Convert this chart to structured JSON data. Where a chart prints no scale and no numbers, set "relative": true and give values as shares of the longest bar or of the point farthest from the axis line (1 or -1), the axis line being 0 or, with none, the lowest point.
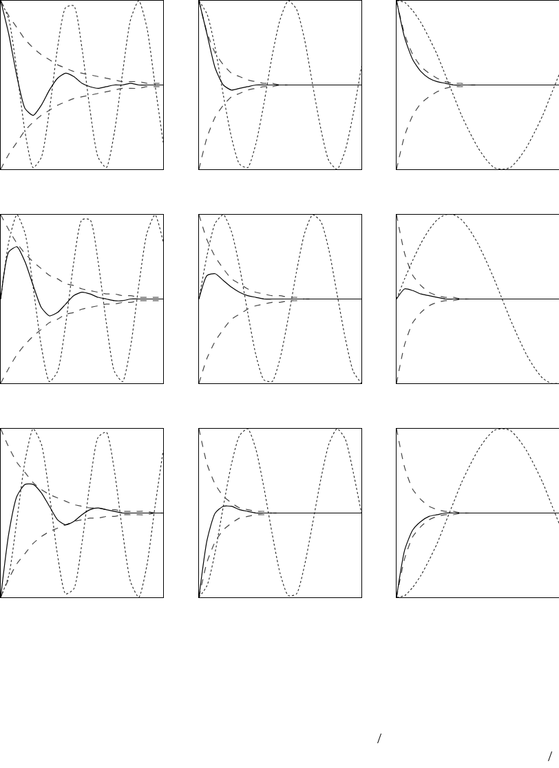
{
  "chart_data": [
    {
      "type": "line",
      "relative": true,
      "categories": [
        null,
        null,
        null,
        null,
        null,
        null,
        null,
        null,
        null,
        null,
        null,
        null,
        null,
        null,
        null,
        null,
        null,
        null,
        null,
        null,
        null
      ],
      "series": [
        {
          "color": "#333333",
          "line_style": "dotted",
          "values": [
            1.0,
            0.89,
            0.58,
            0.22,
            0.01,
            0.07,
            0.35,
            0.72,
            0.96,
            0.97,
            0.72,
            0.35,
            0.07,
            0.01,
            0.22,
            0.57,
            0.89,
            1.0,
            0.84,
            0.5,
            0.16
          ]
        },
        {
          "color": "#444444",
          "line_style": "dashed",
          "values": [
            1.0,
            0.91,
            0.84,
            0.77,
            0.72,
            0.68,
            0.65,
            0.62,
            0.6,
            0.58,
            0.57,
            0.56,
            0.55,
            0.54,
            0.53,
            0.52,
            0.52,
            0.52,
            0.51,
            0.51,
            0.51
          ]
        },
        {
          "color": "#444444",
          "line_style": "dashed",
          "values": [
            0.0,
            0.09,
            0.16,
            0.23,
            0.28,
            0.32,
            0.35,
            0.38,
            0.4,
            0.42,
            0.43,
            0.44,
            0.45,
            0.46,
            0.47,
            0.48,
            0.48,
            0.48,
            0.49,
            0.49,
            0.49
          ]
        },
        {
          "color": "#000000",
          "line_style": "solid",
          "values": [
            1.0,
            0.8,
            0.55,
            0.36,
            0.32,
            0.38,
            0.47,
            0.54,
            0.57,
            0.55,
            0.51,
            0.49,
            0.48,
            0.49,
            0.5,
            0.5,
            0.51,
            0.5,
            0.5,
            0.5,
            0.5
          ]
        }
      ]
    },
    {
      "type": "line",
      "relative": true,
      "categories": [
        null,
        null,
        null,
        null,
        null,
        null,
        null,
        null,
        null,
        null,
        null,
        null,
        null,
        null,
        null,
        null,
        null,
        null,
        null,
        null,
        null
      ],
      "series": [
        {
          "color": "#333333",
          "line_style": "dotted",
          "values": [
            1.0,
            0.92,
            0.72,
            0.44,
            0.19,
            0.03,
            0.01,
            0.15,
            0.39,
            0.67,
            0.89,
            1.0,
            0.95,
            0.77,
            0.5,
            0.24,
            0.05,
            0.0,
            0.11,
            0.33,
            0.61
          ]
        },
        {
          "color": "#444444",
          "line_style": "dashed",
          "values": [
            1.0,
            0.81,
            0.69,
            0.62,
            0.57,
            0.55,
            0.53,
            0.52,
            0.51,
            0.51,
            0.5,
            0.5,
            0.5,
            0.5,
            0.5,
            0.5,
            0.5,
            0.5,
            0.5,
            0.5,
            0.5
          ]
        },
        {
          "color": "#444444",
          "line_style": "dashed",
          "values": [
            0.0,
            0.19,
            0.31,
            0.38,
            0.43,
            0.45,
            0.47,
            0.48,
            0.49,
            0.49,
            0.5,
            0.5,
            0.5,
            0.5,
            0.5,
            0.5,
            0.5,
            0.5,
            0.5,
            0.5,
            0.5
          ]
        },
        {
          "color": "#000000",
          "line_style": "solid",
          "values": [
            1.0,
            0.8,
            0.6,
            0.5,
            0.47,
            0.48,
            0.49,
            0.5,
            0.5,
            0.5,
            0.5,
            0.5,
            0.5,
            0.5,
            0.5,
            0.5,
            0.5,
            0.5,
            0.5,
            0.5,
            0.5
          ]
        }
      ]
    },
    {
      "type": "line",
      "relative": true,
      "categories": [
        null,
        null,
        null,
        null,
        null,
        null,
        null,
        null,
        null,
        null,
        null,
        null,
        null,
        null,
        null,
        null,
        null,
        null,
        null,
        null,
        null
      ],
      "series": [
        {
          "color": "#333333",
          "line_style": "dotted",
          "values": [
            1.0,
            0.99,
            0.94,
            0.87,
            0.78,
            0.68,
            0.56,
            0.44,
            0.32,
            0.22,
            0.13,
            0.06,
            0.01,
            0.0,
            0.01,
            0.06,
            0.13,
            0.22,
            0.32,
            0.44,
            0.56
          ]
        },
        {
          "color": "#444444",
          "line_style": "dashed",
          "values": [
            1.0,
            0.8,
            0.68,
            0.61,
            0.57,
            0.54,
            0.52,
            0.51,
            0.51,
            0.5,
            0.5,
            0.5,
            0.5,
            0.5,
            0.5,
            0.5,
            0.5,
            0.5,
            0.5,
            0.5,
            0.5
          ]
        },
        {
          "color": "#444444",
          "line_style": "dashed",
          "values": [
            0.0,
            0.2,
            0.32,
            0.39,
            0.43,
            0.46,
            0.48,
            0.49,
            0.49,
            0.5,
            0.5,
            0.5,
            0.5,
            0.5,
            0.5,
            0.5,
            0.5,
            0.5,
            0.5,
            0.5,
            0.5
          ]
        },
        {
          "color": "#000000",
          "line_style": "solid",
          "values": [
            1.0,
            0.78,
            0.65,
            0.58,
            0.54,
            0.52,
            0.51,
            0.5,
            0.5,
            0.5,
            0.5,
            0.5,
            0.5,
            0.5,
            0.5,
            0.5,
            0.5,
            0.5,
            0.5,
            0.5,
            0.5
          ]
        }
      ]
    },
    {
      "type": "line",
      "relative": true,
      "categories": [
        null,
        null,
        null,
        null,
        null,
        null,
        null,
        null,
        null,
        null,
        null,
        null,
        null,
        null,
        null,
        null,
        null,
        null,
        null,
        null,
        null
      ],
      "series": [
        {
          "color": "#333333",
          "line_style": "dotted",
          "values": [
            0.5,
            0.84,
            1.0,
            0.89,
            0.57,
            0.22,
            0.01,
            0.07,
            0.35,
            0.72,
            0.97,
            0.97,
            0.72,
            0.36,
            0.07,
            0.01,
            0.22,
            0.58,
            0.89,
            1.0,
            0.84
          ]
        },
        {
          "color": "#444444",
          "line_style": "dashed",
          "values": [
            1.0,
            0.91,
            0.83,
            0.77,
            0.72,
            0.68,
            0.64,
            0.62,
            0.59,
            0.58,
            0.56,
            0.55,
            0.54,
            0.53,
            0.53,
            0.52,
            0.52,
            0.51,
            0.51,
            0.51,
            0.51
          ]
        },
        {
          "color": "#444444",
          "line_style": "dashed",
          "values": [
            0.0,
            0.09,
            0.17,
            0.23,
            0.28,
            0.32,
            0.36,
            0.38,
            0.41,
            0.42,
            0.44,
            0.45,
            0.46,
            0.47,
            0.47,
            0.48,
            0.48,
            0.49,
            0.49,
            0.49,
            0.49
          ]
        },
        {
          "color": "#000000",
          "line_style": "solid",
          "values": [
            0.5,
            0.78,
            0.81,
            0.72,
            0.58,
            0.45,
            0.4,
            0.42,
            0.47,
            0.52,
            0.54,
            0.53,
            0.51,
            0.5,
            0.49,
            0.49,
            0.5,
            0.5,
            0.5,
            0.5,
            0.5
          ]
        }
      ]
    },
    {
      "type": "line",
      "relative": true,
      "categories": [
        null,
        null,
        null,
        null,
        null,
        null,
        null,
        null,
        null,
        null,
        null,
        null,
        null,
        null,
        null,
        null,
        null,
        null,
        null,
        null,
        null
      ],
      "series": [
        {
          "color": "#333333",
          "line_style": "dotted",
          "values": [
            0.5,
            0.76,
            0.95,
            1.0,
            0.9,
            0.69,
            0.42,
            0.17,
            0.02,
            0.01,
            0.15,
            0.39,
            0.66,
            0.89,
            1.0,
            0.96,
            0.79,
            0.53,
            0.27,
            0.07,
            0.0
          ]
        },
        {
          "color": "#444444",
          "line_style": "dashed",
          "values": [
            1.0,
            0.85,
            0.75,
            0.68,
            0.62,
            0.59,
            0.56,
            0.54,
            0.53,
            0.52,
            0.52,
            0.51,
            0.51,
            0.5,
            0.5,
            0.5,
            0.5,
            0.5,
            0.5,
            0.5,
            0.5
          ]
        },
        {
          "color": "#444444",
          "line_style": "dashed",
          "values": [
            0.0,
            0.15,
            0.25,
            0.32,
            0.38,
            0.41,
            0.44,
            0.46,
            0.47,
            0.48,
            0.48,
            0.49,
            0.49,
            0.5,
            0.5,
            0.5,
            0.5,
            0.5,
            0.5,
            0.5,
            0.5
          ]
        },
        {
          "color": "#000000",
          "line_style": "solid",
          "values": [
            0.5,
            0.64,
            0.65,
            0.61,
            0.57,
            0.54,
            0.52,
            0.51,
            0.5,
            0.5,
            0.5,
            0.5,
            0.5,
            0.5,
            0.5,
            0.5,
            0.5,
            0.5,
            0.5,
            0.5,
            0.5
          ]
        }
      ]
    },
    {
      "type": "line",
      "relative": true,
      "categories": [
        null,
        null,
        null,
        null,
        null,
        null,
        null,
        null,
        null,
        null,
        null,
        null,
        null,
        null,
        null,
        null,
        null,
        null,
        null,
        null,
        null
      ],
      "series": [
        {
          "color": "#333333",
          "line_style": "dotted",
          "values": [
            0.5,
            0.62,
            0.73,
            0.83,
            0.91,
            0.97,
            1.0,
            1.0,
            0.97,
            0.91,
            0.83,
            0.73,
            0.62,
            0.5,
            0.38,
            0.27,
            0.17,
            0.09,
            0.03,
            0.0,
            0.0
          ]
        },
        {
          "color": "#444444",
          "line_style": "dashed",
          "values": [
            1.0,
            0.77,
            0.64,
            0.58,
            0.54,
            0.52,
            0.51,
            0.51,
            0.5,
            0.5,
            0.5,
            0.5,
            0.5,
            0.5,
            0.5,
            0.5,
            0.5,
            0.5,
            0.5,
            0.5,
            0.5
          ]
        },
        {
          "color": "#444444",
          "line_style": "dashed",
          "values": [
            0.0,
            0.23,
            0.36,
            0.42,
            0.46,
            0.48,
            0.49,
            0.49,
            0.5,
            0.5,
            0.5,
            0.5,
            0.5,
            0.5,
            0.5,
            0.5,
            0.5,
            0.5,
            0.5,
            0.5,
            0.5
          ]
        },
        {
          "color": "#000000",
          "line_style": "solid",
          "values": [
            0.5,
            0.56,
            0.55,
            0.53,
            0.52,
            0.51,
            0.5,
            0.5,
            0.5,
            0.5,
            0.5,
            0.5,
            0.5,
            0.5,
            0.5,
            0.5,
            0.5,
            0.5,
            0.5,
            0.5,
            0.5
          ]
        }
      ]
    },
    {
      "type": "line",
      "relative": true,
      "categories": [
        null,
        null,
        null,
        null,
        null,
        null,
        null,
        null,
        null,
        null,
        null,
        null,
        null,
        null,
        null,
        null,
        null,
        null,
        null,
        null,
        null
      ],
      "series": [
        {
          "color": "#333333",
          "line_style": "dotted",
          "values": [
            0.0,
            0.13,
            0.46,
            0.81,
            1.0,
            0.91,
            0.61,
            0.25,
            0.02,
            0.05,
            0.32,
            0.68,
            0.95,
            0.98,
            0.75,
            0.39,
            0.09,
            0.0,
            0.19,
            0.54,
            0.87
          ]
        },
        {
          "color": "#444444",
          "line_style": "dashed",
          "values": [
            1.0,
            0.89,
            0.8,
            0.74,
            0.68,
            0.64,
            0.61,
            0.59,
            0.57,
            0.55,
            0.54,
            0.53,
            0.53,
            0.52,
            0.52,
            0.51,
            0.51,
            0.51,
            0.51,
            0.5,
            0.5
          ]
        },
        {
          "color": "#444444",
          "line_style": "dashed",
          "values": [
            0.0,
            0.11,
            0.2,
            0.26,
            0.32,
            0.36,
            0.39,
            0.41,
            0.43,
            0.45,
            0.46,
            0.47,
            0.47,
            0.48,
            0.48,
            0.49,
            0.49,
            0.49,
            0.49,
            0.5,
            0.5
          ]
        },
        {
          "color": "#000000",
          "line_style": "solid",
          "values": [
            0.0,
            0.38,
            0.6,
            0.67,
            0.67,
            0.62,
            0.54,
            0.46,
            0.43,
            0.45,
            0.49,
            0.52,
            0.53,
            0.52,
            0.51,
            0.5,
            0.5,
            0.5,
            0.5,
            0.5,
            0.5
          ]
        }
      ]
    },
    {
      "type": "line",
      "relative": true,
      "categories": [
        null,
        null,
        null,
        null,
        null,
        null,
        null,
        null,
        null,
        null,
        null,
        null,
        null,
        null,
        null,
        null,
        null,
        null,
        null,
        null,
        null
      ],
      "series": [
        {
          "color": "#333333",
          "line_style": "dotted",
          "values": [
            0.0,
            0.07,
            0.27,
            0.54,
            0.79,
            0.96,
            1.0,
            0.88,
            0.65,
            0.38,
            0.14,
            0.01,
            0.02,
            0.19,
            0.44,
            0.7,
            0.91,
            1.0,
            0.94,
            0.74,
            0.5
          ]
        },
        {
          "color": "#444444",
          "line_style": "dashed",
          "values": [
            1.0,
            0.79,
            0.67,
            0.6,
            0.56,
            0.53,
            0.52,
            0.51,
            0.51,
            0.5,
            0.5,
            0.5,
            0.5,
            0.5,
            0.5,
            0.5,
            0.5,
            0.5,
            0.5,
            0.5,
            0.5
          ]
        },
        {
          "color": "#444444",
          "line_style": "dashed",
          "values": [
            0.0,
            0.21,
            0.33,
            0.4,
            0.44,
            0.47,
            0.48,
            0.49,
            0.49,
            0.5,
            0.5,
            0.5,
            0.5,
            0.5,
            0.5,
            0.5,
            0.5,
            0.5,
            0.5,
            0.5,
            0.5
          ]
        },
        {
          "color": "#000000",
          "line_style": "solid",
          "values": [
            0.0,
            0.34,
            0.5,
            0.54,
            0.54,
            0.52,
            0.51,
            0.5,
            0.5,
            0.5,
            0.5,
            0.5,
            0.5,
            0.5,
            0.5,
            0.5,
            0.5,
            0.5,
            0.5,
            0.5,
            0.5
          ]
        }
      ]
    },
    {
      "type": "line",
      "relative": true,
      "categories": [
        null,
        null,
        null,
        null,
        null,
        null,
        null,
        null,
        null,
        null,
        null,
        null,
        null,
        null,
        null,
        null,
        null,
        null,
        null,
        null,
        null
      ],
      "annotations": [
        "/",
        "/"
      ],
      "series": [
        {
          "color": "#333333",
          "line_style": "dotted",
          "values": [
            0.0,
            0.01,
            0.06,
            0.13,
            0.22,
            0.32,
            0.44,
            0.56,
            0.68,
            0.78,
            0.87,
            0.94,
            0.99,
            1.0,
            0.99,
            0.94,
            0.87,
            0.78,
            0.68,
            0.56,
            0.44
          ]
        },
        {
          "color": "#444444",
          "line_style": "dashed",
          "values": [
            1.0,
            0.77,
            0.64,
            0.58,
            0.54,
            0.52,
            0.51,
            0.51,
            0.5,
            0.5,
            0.5,
            0.5,
            0.5,
            0.5,
            0.5,
            0.5,
            0.5,
            0.5,
            0.5,
            0.5,
            0.5
          ]
        },
        {
          "color": "#444444",
          "line_style": "dashed",
          "values": [
            0.0,
            0.23,
            0.36,
            0.42,
            0.46,
            0.48,
            0.49,
            0.49,
            0.5,
            0.5,
            0.5,
            0.5,
            0.5,
            0.5,
            0.5,
            0.5,
            0.5,
            0.5,
            0.5,
            0.5,
            0.5
          ]
        },
        {
          "color": "#000000",
          "line_style": "solid",
          "values": [
            0.0,
            0.28,
            0.4,
            0.45,
            0.48,
            0.49,
            0.5,
            0.5,
            0.5,
            0.5,
            0.5,
            0.5,
            0.5,
            0.5,
            0.5,
            0.5,
            0.5,
            0.5,
            0.5,
            0.5,
            0.5
          ]
        }
      ]
    }
  ]
}
